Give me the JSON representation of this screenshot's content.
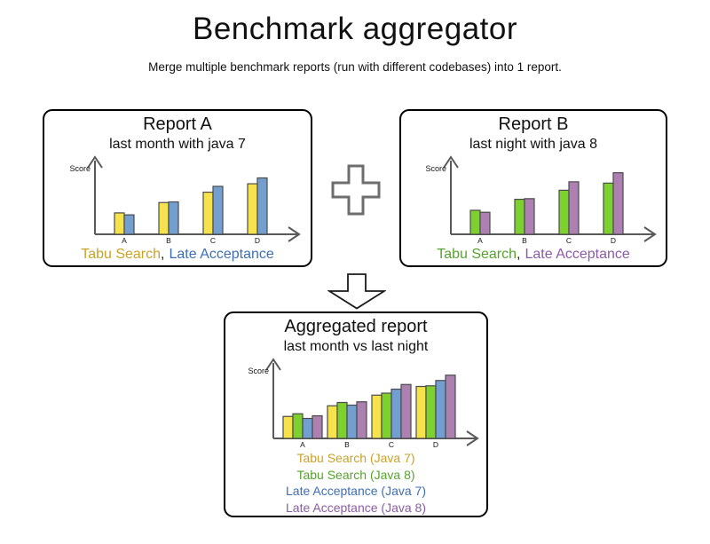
{
  "page": {
    "title": "Benchmark aggregator",
    "subtitle": "Merge multiple benchmark reports (run with different codebases) into 1 report."
  },
  "icons": {
    "plus": "plus",
    "arrow_down": "arrow-down"
  },
  "colors": {
    "axis": "#595959",
    "bar_outline": "#4b4b4b",
    "panel_border": "#000000"
  },
  "panels": [
    {
      "title": "Report A",
      "subtitle": "last month with java 7",
      "separator": ",",
      "legend": [
        {
          "label": "Tabu Search",
          "color": "#C9A227"
        },
        {
          "label": "Late Acceptance",
          "color": "#3D6EB5"
        }
      ]
    },
    {
      "title": "Report B",
      "subtitle": "last night with java 8",
      "separator": ",",
      "legend": [
        {
          "label": "Tabu Search",
          "color": "#56A32C"
        },
        {
          "label": "Late Acceptance",
          "color": "#8B5BA5"
        }
      ]
    },
    {
      "title": "Aggregated report",
      "subtitle": "last month vs last night",
      "legend": [
        {
          "label": "Tabu Search (Java 7)",
          "color": "#C9A227"
        },
        {
          "label": "Tabu Search (Java 8)",
          "color": "#56A32C"
        },
        {
          "label": "Late Acceptance (Java 7)",
          "color": "#3D6EB5"
        },
        {
          "label": "Late Acceptance (Java 8)",
          "color": "#8B5BA5"
        }
      ]
    }
  ],
  "chart_data": [
    {
      "type": "bar",
      "name": "report-a",
      "title": "Report A",
      "subtitle": "last month with java 7",
      "xlabel": "",
      "ylabel": "Score",
      "categories": [
        "A",
        "B",
        "C",
        "D"
      ],
      "series": [
        {
          "name": "Tabu Search",
          "color": "#F6E14E",
          "values": [
            33,
            49,
            65,
            78
          ]
        },
        {
          "name": "Late Acceptance",
          "color": "#729FCF",
          "values": [
            30,
            50,
            74,
            87
          ]
        }
      ],
      "ylim": [
        0,
        100
      ],
      "grid": false,
      "legend_position": "below"
    },
    {
      "type": "bar",
      "name": "report-b",
      "title": "Report B",
      "subtitle": "last night with java 8",
      "xlabel": "",
      "ylabel": "Score",
      "categories": [
        "A",
        "B",
        "C",
        "D"
      ],
      "series": [
        {
          "name": "Tabu Search",
          "color": "#7DD12D",
          "values": [
            37,
            54,
            68,
            79
          ]
        },
        {
          "name": "Late Acceptance",
          "color": "#AC80B0",
          "values": [
            34,
            55,
            81,
            95
          ]
        }
      ],
      "ylim": [
        0,
        100
      ],
      "grid": false,
      "legend_position": "below"
    },
    {
      "type": "bar",
      "name": "aggregated-report",
      "title": "Aggregated report",
      "subtitle": "last month vs last night",
      "xlabel": "",
      "ylabel": "Score",
      "categories": [
        "A",
        "B",
        "C",
        "D"
      ],
      "series": [
        {
          "name": "Tabu Search (Java 7)",
          "color": "#F6E14E",
          "values": [
            33,
            49,
            65,
            78
          ]
        },
        {
          "name": "Tabu Search (Java 8)",
          "color": "#7DD12D",
          "values": [
            37,
            54,
            68,
            79
          ]
        },
        {
          "name": "Late Acceptance (Java 7)",
          "color": "#729FCF",
          "values": [
            30,
            50,
            74,
            87
          ]
        },
        {
          "name": "Late Acceptance (Java 8)",
          "color": "#AC80B0",
          "values": [
            34,
            55,
            81,
            95
          ]
        }
      ],
      "ylim": [
        0,
        100
      ],
      "grid": false,
      "legend_position": "below"
    }
  ]
}
